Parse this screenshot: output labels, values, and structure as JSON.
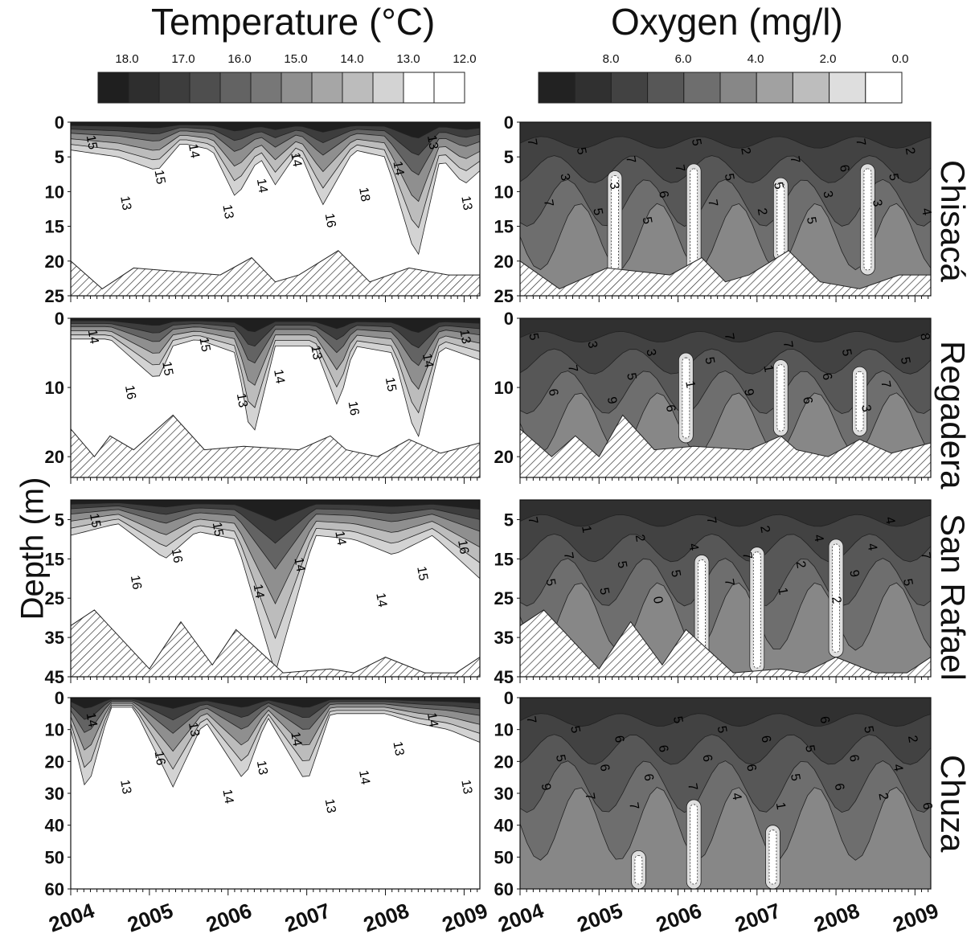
{
  "figure": {
    "columns": [
      "Temperature (°C)",
      "Oxygen (mg/l)"
    ],
    "y_axis_label": "Depth (m)",
    "lakes": [
      "Chisacá",
      "Regadera",
      "San Rafael",
      "Chuza"
    ],
    "x_tick_labels": [
      "2004",
      "2005",
      "2006",
      "2007",
      "2008",
      "2009"
    ]
  },
  "chart_data": [
    {
      "type": "heatmap",
      "panel": "temperature-legend",
      "legend_tick_labels": [
        "18.0",
        "17.0",
        "16.0",
        "15.0",
        "14.0",
        "13.0",
        "12.0"
      ],
      "legend_colors": [
        "#1f1f1f",
        "#2e2e2e",
        "#3d3d3d",
        "#4e4e4e",
        "#636363",
        "#777777",
        "#8f8f8f",
        "#a6a6a6",
        "#bcbcbc",
        "#d3d3d3",
        "#ffffff",
        "#ffffff"
      ]
    },
    {
      "type": "heatmap",
      "panel": "oxygen-legend",
      "legend_tick_labels": [
        "8.0",
        "6.0",
        "4.0",
        "2.0",
        "0.0"
      ],
      "legend_colors": [
        "#222222",
        "#303030",
        "#424242",
        "#575757",
        "#6e6e6e",
        "#878787",
        "#a1a1a1",
        "#bdbdbd",
        "#dedede",
        "#ffffff"
      ]
    },
    {
      "type": "heatmap",
      "panel": "temperature-chisaca",
      "variable": "temperature",
      "lake": "Chisacá",
      "x_range": [
        2004,
        2009.2
      ],
      "depth_range": [
        0,
        25
      ],
      "y_tick_labels": [
        "0",
        "5",
        "10",
        "15",
        "20",
        "25"
      ],
      "contour_labels": [
        "15",
        "13",
        "15",
        "14",
        "13",
        "14",
        "14",
        "16",
        "18",
        "14",
        "13",
        "13"
      ],
      "bottom_depth": [
        [
          2004,
          20
        ],
        [
          2004.4,
          24
        ],
        [
          2004.8,
          21
        ],
        [
          2005.9,
          22
        ],
        [
          2006.3,
          19.5
        ],
        [
          2006.6,
          23
        ],
        [
          2006.9,
          22
        ],
        [
          2007.4,
          18.5
        ],
        [
          2007.8,
          23
        ],
        [
          2008.3,
          21
        ],
        [
          2008.8,
          22
        ],
        [
          2009.2,
          22
        ]
      ],
      "mixed_layer_depth": [
        [
          2004,
          4
        ],
        [
          2004.6,
          5
        ],
        [
          2005.1,
          7
        ],
        [
          2005.4,
          3
        ],
        [
          2005.8,
          4
        ],
        [
          2006.1,
          11
        ],
        [
          2006.4,
          5
        ],
        [
          2006.6,
          9
        ],
        [
          2006.9,
          4
        ],
        [
          2007.2,
          12
        ],
        [
          2007.6,
          4
        ],
        [
          2008.0,
          5
        ],
        [
          2008.4,
          20
        ],
        [
          2008.7,
          5
        ],
        [
          2009.0,
          9
        ],
        [
          2009.2,
          7
        ]
      ]
    },
    {
      "type": "heatmap",
      "panel": "oxygen-chisaca",
      "variable": "oxygen",
      "lake": "Chisacá",
      "x_range": [
        2004,
        2009.2
      ],
      "depth_range": [
        0,
        25
      ],
      "y_tick_labels": [
        "0",
        "5",
        "10",
        "15",
        "20",
        "25"
      ],
      "contour_labels": [
        "7",
        "7",
        "3",
        "5",
        "5",
        "3",
        "7",
        "5",
        "6",
        "7",
        "5",
        "7",
        "5",
        "2",
        "2",
        "5",
        "7",
        "5",
        "3",
        "6",
        "7",
        "3",
        "5",
        "2",
        "4"
      ],
      "bottom_depth": [
        [
          2004,
          20
        ],
        [
          2004.5,
          24
        ],
        [
          2005.1,
          21
        ],
        [
          2005.9,
          22
        ],
        [
          2006.3,
          19.5
        ],
        [
          2006.6,
          23
        ],
        [
          2006.9,
          22
        ],
        [
          2007.4,
          18.5
        ],
        [
          2007.8,
          23
        ],
        [
          2008.3,
          24
        ],
        [
          2008.8,
          22
        ],
        [
          2009.2,
          22
        ]
      ],
      "low_oxygen_zones": [
        [
          2005.2,
          7,
          22
        ],
        [
          2006.2,
          6,
          22
        ],
        [
          2007.3,
          8,
          20
        ],
        [
          2008.4,
          6,
          22
        ]
      ]
    },
    {
      "type": "heatmap",
      "panel": "temperature-regadera",
      "variable": "temperature",
      "lake": "Regadera",
      "x_range": [
        2004,
        2009.2
      ],
      "depth_range": [
        0,
        23
      ],
      "y_tick_labels": [
        "0",
        "10",
        "20"
      ],
      "contour_labels": [
        "14",
        "16",
        "15",
        "15",
        "13",
        "14",
        "13",
        "16",
        "15",
        "14",
        "13"
      ],
      "bottom_depth": [
        [
          2004,
          16
        ],
        [
          2004.3,
          20
        ],
        [
          2004.5,
          17
        ],
        [
          2004.8,
          19
        ],
        [
          2005.3,
          14
        ],
        [
          2005.7,
          19
        ],
        [
          2006.2,
          18.5
        ],
        [
          2006.9,
          19
        ],
        [
          2007.3,
          17
        ],
        [
          2007.5,
          19
        ],
        [
          2007.9,
          20
        ],
        [
          2008.3,
          17.5
        ],
        [
          2008.7,
          19.5
        ],
        [
          2009.2,
          18
        ]
      ],
      "mixed_layer_depth": [
        [
          2004,
          3
        ],
        [
          2004.5,
          3
        ],
        [
          2005.1,
          9
        ],
        [
          2005.3,
          4
        ],
        [
          2005.6,
          3
        ],
        [
          2006.1,
          5
        ],
        [
          2006.3,
          18
        ],
        [
          2006.6,
          4
        ],
        [
          2007.1,
          4
        ],
        [
          2007.4,
          13
        ],
        [
          2007.6,
          4
        ],
        [
          2008.1,
          5
        ],
        [
          2008.4,
          18
        ],
        [
          2008.7,
          4
        ],
        [
          2009.2,
          6
        ]
      ]
    },
    {
      "type": "heatmap",
      "panel": "oxygen-regadera",
      "variable": "oxygen",
      "lake": "Regadera",
      "x_range": [
        2004,
        2009.2
      ],
      "depth_range": [
        0,
        23
      ],
      "y_tick_labels": [
        "0",
        "10",
        "20"
      ],
      "contour_labels": [
        "5",
        "6",
        "7",
        "3",
        "9",
        "5",
        "3",
        "6",
        "1",
        "5",
        "7",
        "9",
        "1",
        "7",
        "6",
        "6",
        "5",
        "3",
        "7",
        "5",
        "8"
      ],
      "bottom_depth": [
        [
          2004,
          16
        ],
        [
          2004.4,
          20
        ],
        [
          2004.7,
          17
        ],
        [
          2005.0,
          20
        ],
        [
          2005.3,
          14
        ],
        [
          2005.7,
          19
        ],
        [
          2006.2,
          18.5
        ],
        [
          2006.9,
          19
        ],
        [
          2007.3,
          17
        ],
        [
          2007.5,
          19
        ],
        [
          2007.9,
          20
        ],
        [
          2008.3,
          17.5
        ],
        [
          2008.7,
          19.5
        ],
        [
          2009.2,
          18
        ]
      ],
      "low_oxygen_zones": [
        [
          2006.1,
          5,
          18
        ],
        [
          2007.3,
          6,
          17
        ],
        [
          2008.3,
          7,
          17
        ]
      ]
    },
    {
      "type": "heatmap",
      "panel": "temperature-san-rafael",
      "variable": "temperature",
      "lake": "San Rafael",
      "x_range": [
        2004,
        2009.2
      ],
      "depth_range": [
        0,
        45
      ],
      "y_tick_labels": [
        "5",
        "15",
        "25",
        "35",
        "45"
      ],
      "contour_labels": [
        "15",
        "16",
        "16",
        "15",
        "14",
        "14",
        "14",
        "14",
        "15",
        "16"
      ],
      "bottom_depth": [
        [
          2004,
          32
        ],
        [
          2004.3,
          28
        ],
        [
          2005.0,
          43
        ],
        [
          2005.4,
          31
        ],
        [
          2005.8,
          42
        ],
        [
          2006.1,
          33
        ],
        [
          2006.7,
          44
        ],
        [
          2007.3,
          43
        ],
        [
          2007.6,
          44
        ],
        [
          2008.0,
          40
        ],
        [
          2008.5,
          44
        ],
        [
          2008.9,
          44
        ],
        [
          2009.2,
          40
        ]
      ],
      "thermocline_depth": [
        [
          2004,
          9
        ],
        [
          2004.6,
          6
        ],
        [
          2005.2,
          15
        ],
        [
          2005.6,
          8
        ],
        [
          2006.1,
          10
        ],
        [
          2006.6,
          44
        ],
        [
          2007.1,
          9
        ],
        [
          2007.6,
          10
        ],
        [
          2008.1,
          14
        ],
        [
          2008.6,
          9
        ],
        [
          2009.2,
          20
        ]
      ]
    },
    {
      "type": "heatmap",
      "panel": "oxygen-san-rafael",
      "variable": "oxygen",
      "lake": "San Rafael",
      "x_range": [
        2004,
        2009.2
      ],
      "depth_range": [
        0,
        45
      ],
      "y_tick_labels": [
        "5",
        "15",
        "25",
        "35",
        "45"
      ],
      "contour_labels": [
        "7",
        "5",
        "7",
        "1",
        "5",
        "5",
        "2",
        "0",
        "5",
        "4",
        "7",
        "7",
        "7",
        "2",
        "1",
        "2",
        "4",
        "2",
        "9",
        "4",
        "4",
        "5",
        "7"
      ],
      "bottom_depth": [
        [
          2004,
          32
        ],
        [
          2004.3,
          28
        ],
        [
          2005.0,
          43
        ],
        [
          2005.4,
          31
        ],
        [
          2005.8,
          42
        ],
        [
          2006.1,
          33
        ],
        [
          2006.7,
          44
        ],
        [
          2007.3,
          43
        ],
        [
          2007.6,
          44
        ],
        [
          2008.0,
          40
        ],
        [
          2008.5,
          44
        ],
        [
          2008.9,
          44
        ],
        [
          2009.2,
          40
        ]
      ],
      "low_oxygen_zones": [
        [
          2006.3,
          14,
          40
        ],
        [
          2007.0,
          12,
          44
        ],
        [
          2008.0,
          10,
          40
        ]
      ]
    },
    {
      "type": "heatmap",
      "panel": "temperature-chuza",
      "variable": "temperature",
      "lake": "Chuza",
      "x_range": [
        2004,
        2009.2
      ],
      "depth_range": [
        0,
        60
      ],
      "y_tick_labels": [
        "0",
        "10",
        "20",
        "30",
        "40",
        "50",
        "60"
      ],
      "contour_labels": [
        "14",
        "13",
        "16",
        "13",
        "14",
        "13",
        "14",
        "13",
        "14",
        "13",
        "14",
        "13"
      ],
      "warm_layer_depth": [
        [
          2004.0,
          10
        ],
        [
          2004.2,
          30
        ],
        [
          2004.5,
          3
        ],
        [
          2004.8,
          3
        ],
        [
          2005.3,
          28
        ],
        [
          2005.7,
          7
        ],
        [
          2006.2,
          26
        ],
        [
          2006.5,
          6
        ],
        [
          2007.0,
          27
        ],
        [
          2007.3,
          5
        ],
        [
          2008.0,
          5
        ],
        [
          2008.4,
          8
        ],
        [
          2008.8,
          10
        ],
        [
          2009.2,
          14
        ]
      ]
    },
    {
      "type": "heatmap",
      "panel": "oxygen-chuza",
      "variable": "oxygen",
      "lake": "Chuza",
      "x_range": [
        2004,
        2009.2
      ],
      "depth_range": [
        0,
        60
      ],
      "y_tick_labels": [
        "0",
        "10",
        "20",
        "30",
        "40",
        "50",
        "60"
      ],
      "contour_labels": [
        "7",
        "9",
        "5",
        "5",
        "7",
        "6",
        "6",
        "7",
        "6",
        "6",
        "5",
        "7",
        "6",
        "5",
        "4",
        "6",
        "6",
        "1",
        "5",
        "5",
        "6",
        "6",
        "6",
        "5",
        "2",
        "4",
        "2",
        "6"
      ],
      "low_oxygen_zones": [
        [
          2006.2,
          32,
          60
        ],
        [
          2007.2,
          40,
          60
        ],
        [
          2005.5,
          48,
          60
        ]
      ]
    }
  ]
}
